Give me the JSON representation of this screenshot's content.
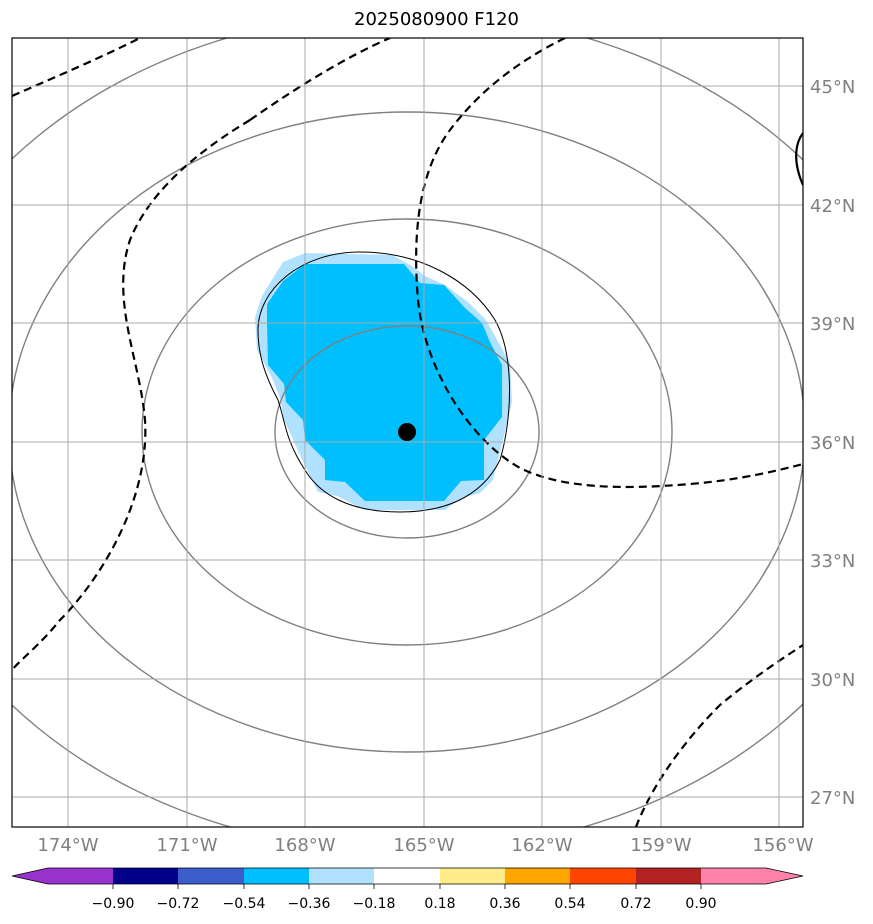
{
  "title": "2025080900 F120",
  "lon_labels": [
    "174°W",
    "171°W",
    "168°W",
    "165°W",
    "162°W",
    "159°W",
    "156°W"
  ],
  "lat_labels": [
    "45°N",
    "42°N",
    "39°N",
    "36°N",
    "33°N",
    "30°N",
    "27°N"
  ],
  "colorbar": {
    "ticks": [
      "−0.90",
      "−0.72",
      "−0.54",
      "−0.36",
      "−0.18",
      "0.18",
      "0.36",
      "0.54",
      "0.72",
      "0.90"
    ],
    "colors": [
      "#9932cc",
      "#00008b",
      "#3a5fcd",
      "#00bfff",
      "#b0e2ff",
      "#ffffff",
      "#ffec8b",
      "#ffa500",
      "#ff4500",
      "#b22222",
      "#ff82ab"
    ]
  },
  "center_marker": {
    "lon": -165,
    "lat": 36.3
  },
  "colors": {
    "grid": "#a9a9a9",
    "contour": "#808080",
    "fill_main": "#00bfff",
    "fill_light": "#b0e2ff"
  }
}
